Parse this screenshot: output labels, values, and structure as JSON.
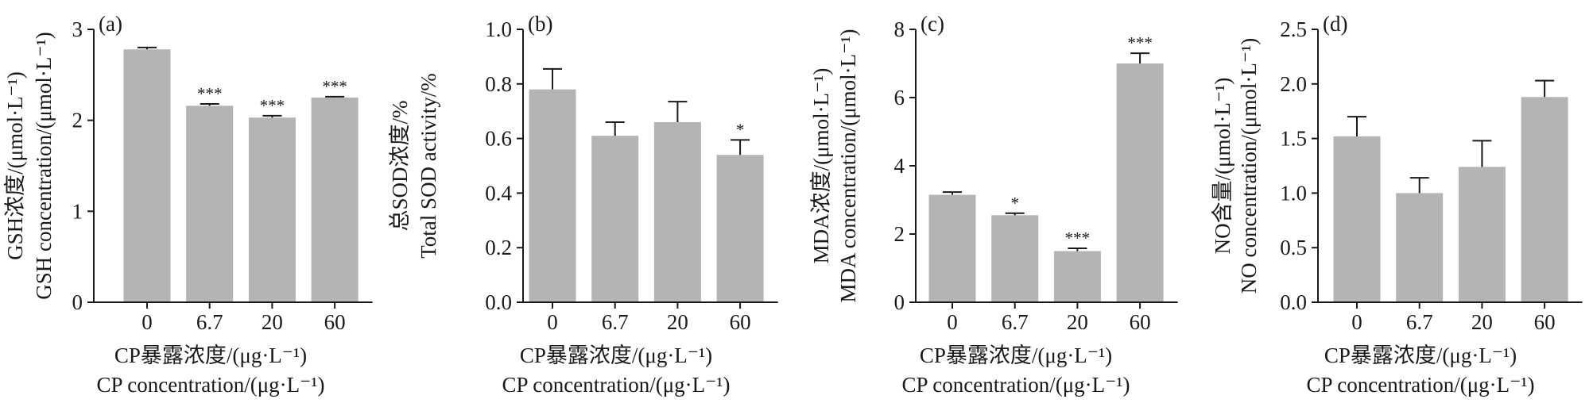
{
  "chart_data": [
    {
      "type": "bar",
      "panel_label": "(a)",
      "categories": [
        "0",
        "6.7",
        "20",
        "60"
      ],
      "values": [
        2.78,
        2.16,
        2.03,
        2.25
      ],
      "errors": [
        0.02,
        0.02,
        0.02,
        0.01
      ],
      "significance": [
        "",
        "***",
        "***",
        "***"
      ],
      "ylim": [
        0,
        3
      ],
      "yticks": [
        "0",
        "1",
        "2",
        "3"
      ],
      "ylabel_line1": "GSH浓度/(μmol·L⁻¹)",
      "ylabel_line2": "GSH concentration/(μmol·L⁻¹)",
      "xlabel_line1": "CP暴露浓度/(μg·L⁻¹)",
      "xlabel_line2": "CP concentration/(μg·L⁻¹)"
    },
    {
      "type": "bar",
      "panel_label": "(b)",
      "categories": [
        "0",
        "6.7",
        "20",
        "60"
      ],
      "values": [
        0.78,
        0.61,
        0.66,
        0.54
      ],
      "errors": [
        0.075,
        0.05,
        0.075,
        0.055
      ],
      "significance": [
        "",
        "",
        "",
        "*"
      ],
      "ylim": [
        0,
        1
      ],
      "yticks": [
        "0.0",
        "0.2",
        "0.4",
        "0.6",
        "0.8",
        "1.0"
      ],
      "ylabel_line1": "总SOD浓度/%",
      "ylabel_line2": "Total SOD activity/%",
      "xlabel_line1": "CP暴露浓度/(μg·L⁻¹)",
      "xlabel_line2": "CP concentration/(μg·L⁻¹)"
    },
    {
      "type": "bar",
      "panel_label": "(c)",
      "categories": [
        "0",
        "6.7",
        "20",
        "60"
      ],
      "values": [
        3.15,
        2.55,
        1.5,
        7.0
      ],
      "errors": [
        0.08,
        0.06,
        0.08,
        0.3
      ],
      "significance": [
        "",
        "*",
        "***",
        "***"
      ],
      "ylim": [
        0,
        8
      ],
      "yticks": [
        "0",
        "2",
        "4",
        "6",
        "8"
      ],
      "ylabel_line1": "MDA浓度/(μmol·L⁻¹)",
      "ylabel_line2": "MDA concentration/(μmol·L⁻¹)",
      "xlabel_line1": "CP暴露浓度/(μg·L⁻¹)",
      "xlabel_line2": "CP concentration/(μg·L⁻¹)"
    },
    {
      "type": "bar",
      "panel_label": "(d)",
      "categories": [
        "0",
        "6.7",
        "20",
        "60"
      ],
      "values": [
        1.52,
        1.0,
        1.24,
        1.88
      ],
      "errors": [
        0.18,
        0.14,
        0.24,
        0.15
      ],
      "significance": [
        "",
        "",
        "",
        ""
      ],
      "ylim": [
        0,
        2.5
      ],
      "yticks": [
        "0.0",
        "0.5",
        "1.0",
        "1.5",
        "2.0",
        "2.5"
      ],
      "ylabel_line1": "NO含量/(μmol·L⁻¹)",
      "ylabel_line2": "NO concentration/(μmol·L⁻¹)",
      "xlabel_line1": "CP暴露浓度/(μg·L⁻¹)",
      "xlabel_line2": "CP concentration/(μg·L⁻¹)"
    }
  ]
}
